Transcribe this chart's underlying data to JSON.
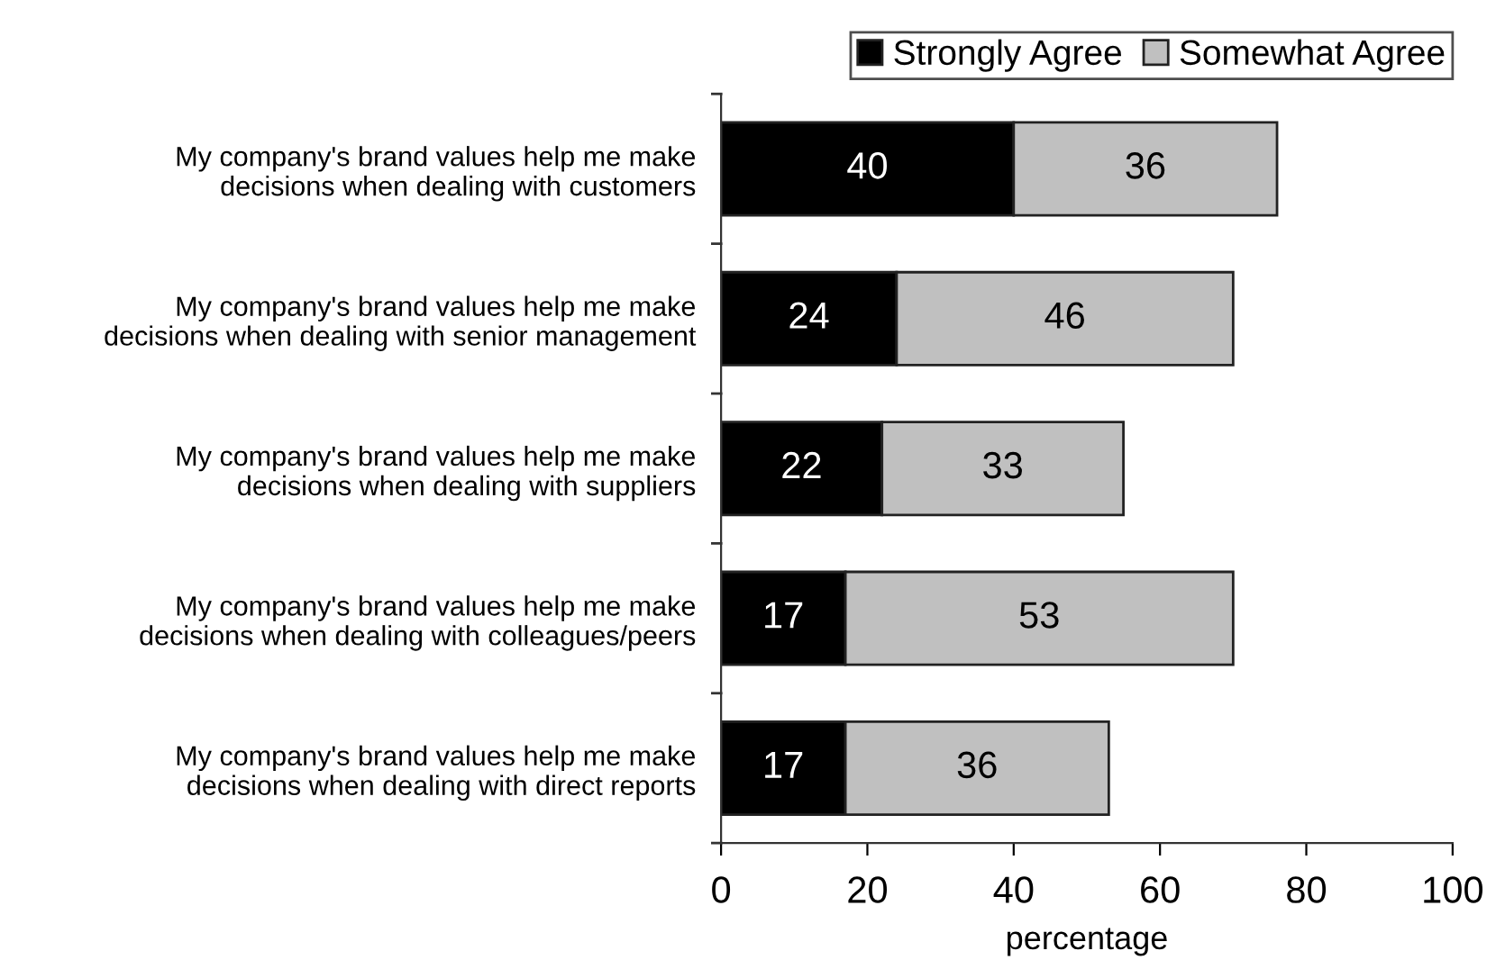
{
  "chart_data": {
    "type": "bar",
    "orientation": "horizontal",
    "stacked": true,
    "xlabel": "percentage",
    "categories": [
      "My company's brand values help me make\ndecisions when dealing with customers",
      "My company's brand values help me make\ndecisions when dealing with senior management",
      "My company's brand values help me make\ndecisions when dealing with suppliers",
      "My company's brand values help me make\ndecisions when dealing with colleagues/peers",
      "My company's brand values help me make\ndecisions when dealing with direct reports"
    ],
    "series": [
      {
        "name": "Strongly Agree",
        "color": "#000000",
        "values": [
          40,
          24,
          22,
          17,
          17
        ]
      },
      {
        "name": "Somewhat Agree",
        "color": "#c0c0c0",
        "values": [
          36,
          46,
          33,
          53,
          36
        ]
      }
    ],
    "xlim": [
      0,
      100
    ],
    "xticks": [
      0,
      20,
      40,
      60,
      80,
      100
    ],
    "grid": false,
    "legend": "top right",
    "data_labels": true
  }
}
